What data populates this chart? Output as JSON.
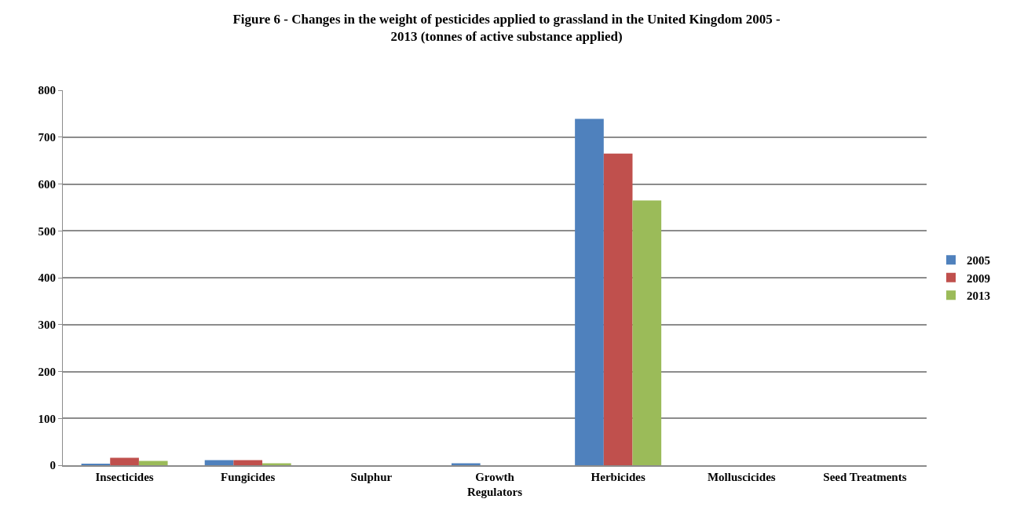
{
  "chart_data": {
    "type": "bar",
    "title": "Figure 6 - Changes in the weight of pesticides applied to grassland in the United Kingdom 2005 - 2013 (tonnes of active substance applied)",
    "categories": [
      "Insecticides",
      "Fungicides",
      "Sulphur",
      "Growth Regulators",
      "Herbicides",
      "Molluscicides",
      "Seed Treatments"
    ],
    "series": [
      {
        "name": "2005",
        "color": "#4f81bd",
        "values": [
          2,
          11,
          0,
          4,
          739,
          0,
          0
        ]
      },
      {
        "name": "2009",
        "color": "#c0504d",
        "values": [
          16,
          11,
          0,
          0,
          665,
          0,
          0
        ]
      },
      {
        "name": "2013",
        "color": "#9bbb59",
        "values": [
          9,
          4,
          0,
          0,
          565,
          0,
          0
        ]
      }
    ],
    "ylim": [
      0,
      800
    ],
    "yticks": [
      0,
      100,
      200,
      300,
      400,
      500,
      600,
      700,
      800
    ],
    "grid": "y",
    "legend": "right"
  }
}
